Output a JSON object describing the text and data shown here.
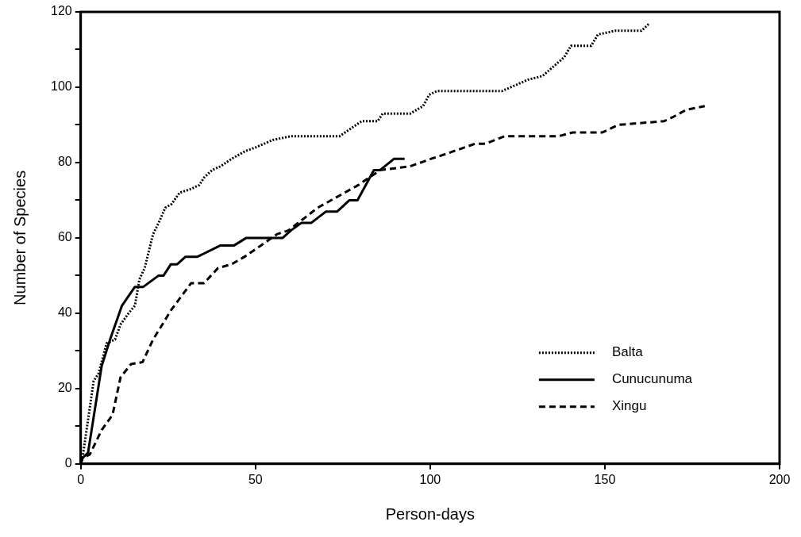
{
  "chart_data": {
    "type": "line",
    "xlabel": "Person-days",
    "ylabel": "Number of Species",
    "xlim": [
      0,
      200
    ],
    "xticks": [
      0,
      50,
      100,
      150,
      200
    ],
    "ylim": [
      0,
      120
    ],
    "yticks": [
      0,
      {
        "value": 10,
        "label": null
      },
      20,
      {
        "value": 30,
        "label": null
      },
      40,
      {
        "value": 50,
        "label": null
      },
      60,
      {
        "value": 70,
        "label": null
      },
      80,
      {
        "value": 90,
        "label": null
      },
      100,
      {
        "value": 110,
        "label": null
      },
      120
    ],
    "grid": false,
    "legend": "bottom right",
    "marker": "none",
    "series": [
      {
        "name": "Balta",
        "color": "#000000",
        "line_style": "dotted",
        "x": [
          0,
          0.5,
          3.7,
          5.1,
          7.4,
          9.8,
          11.4,
          13.7,
          15.5,
          16.8,
          18.3,
          20.7,
          22.3,
          24.2,
          26,
          28.3,
          31.6,
          33.9,
          35.3,
          37.6,
          40,
          43.2,
          47,
          50,
          55,
          60.2,
          74.1,
          80.4,
          85,
          86.4,
          94.3,
          98,
          99.7,
          102,
          120.6,
          128,
          132.2,
          138.4,
          140.3,
          146.1,
          148,
          153,
          160.5,
          162.8
        ],
        "values": [
          0,
          1.5,
          22,
          24,
          32,
          33,
          37,
          40,
          42,
          49,
          52,
          61,
          64,
          68,
          69,
          72,
          73,
          74,
          76,
          78,
          79,
          81,
          83,
          84,
          86,
          87,
          87,
          91,
          91,
          93,
          93,
          95,
          98,
          99,
          99,
          102,
          103,
          108,
          111,
          111,
          114,
          115,
          115,
          117
        ]
      },
      {
        "name": "Cunucunuma",
        "color": "#000000",
        "line_style": "solid",
        "x": [
          0,
          0.5,
          2.1,
          6,
          8.4,
          11.8,
          15.5,
          17.9,
          22.3,
          23.7,
          25.8,
          27.6,
          30,
          33.4,
          40,
          43.9,
          47.4,
          55.5,
          57.8,
          60.2,
          63.2,
          66,
          70.2,
          73.4,
          76.9,
          79.2,
          83.9,
          85.7,
          89.7,
          92.7
        ],
        "values": [
          0,
          1.5,
          3,
          26,
          33,
          42,
          47,
          47,
          50,
          50,
          53,
          53,
          55,
          55,
          58,
          58,
          60,
          60,
          60,
          62,
          64,
          64,
          67,
          67,
          70,
          70,
          78,
          78,
          81,
          81
        ]
      },
      {
        "name": "Xingu",
        "color": "#000000",
        "line_style": "dashed",
        "x": [
          0,
          0.5,
          2.6,
          6,
          9.1,
          11.4,
          14.4,
          17.7,
          20.7,
          26,
          31.6,
          35.3,
          39.3,
          43.2,
          46.9,
          51.6,
          56.2,
          59.5,
          67.8,
          79.4,
          85.7,
          94.3,
          100.3,
          103.6,
          112.9,
          115.9,
          121.3,
          136.8,
          140.8,
          149.3,
          153.8,
          167,
          169.3,
          173.3,
          178.6
        ],
        "values": [
          0,
          1.5,
          2.5,
          9,
          13,
          23,
          26.5,
          27,
          33,
          41,
          48,
          48,
          52,
          53,
          55,
          58,
          61,
          62,
          68,
          74,
          78,
          79,
          81,
          82,
          85,
          85,
          87,
          87,
          88,
          88,
          90,
          91,
          92,
          94,
          95
        ]
      }
    ]
  }
}
